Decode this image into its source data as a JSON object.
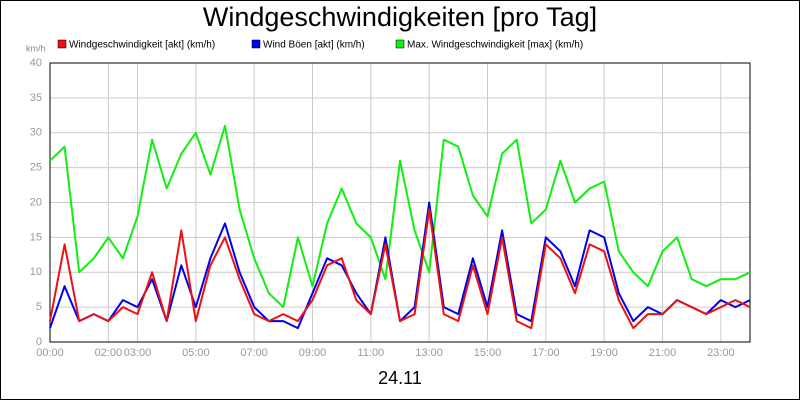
{
  "chart_data": {
    "type": "line",
    "title": "Windgeschwindigkeiten [pro Tag]",
    "y_unit": "km/h",
    "x_label": "24.11",
    "x": [
      0,
      0.5,
      1,
      1.5,
      2,
      2.5,
      3,
      3.5,
      4,
      4.5,
      5,
      5.5,
      6,
      6.5,
      7,
      7.5,
      8,
      8.5,
      9,
      9.5,
      10,
      10.5,
      11,
      11.5,
      12,
      12.5,
      13,
      13.5,
      14,
      14.5,
      15,
      15.5,
      16,
      16.5,
      17,
      17.5,
      18,
      18.5,
      19,
      19.5,
      20,
      20.5,
      21,
      21.5,
      22,
      22.5,
      23,
      23.5,
      24
    ],
    "series": [
      {
        "name": "Windgeschwindigkeit [akt] (km/h)",
        "color": "#ee1111",
        "values": [
          3,
          14,
          3,
          4,
          3,
          5,
          4,
          10,
          3,
          16,
          3,
          11,
          15,
          9,
          4,
          3,
          4,
          3,
          6,
          11,
          12,
          6,
          4,
          14,
          3,
          4,
          19,
          4,
          3,
          11,
          4,
          15,
          3,
          2,
          14,
          12,
          7,
          14,
          13,
          6,
          2,
          4,
          4,
          6,
          5,
          4,
          5,
          6,
          5
        ]
      },
      {
        "name": "Wind Böen [akt] (km/h)",
        "color": "#0000ee",
        "values": [
          2,
          8,
          3,
          4,
          3,
          6,
          5,
          9,
          3,
          11,
          5,
          12,
          17,
          10,
          5,
          3,
          3,
          2,
          7,
          12,
          11,
          7,
          4,
          15,
          3,
          5,
          20,
          5,
          4,
          12,
          5,
          16,
          4,
          3,
          15,
          13,
          8,
          16,
          15,
          7,
          3,
          5,
          4,
          6,
          5,
          4,
          6,
          5,
          6
        ]
      },
      {
        "name": "Max. Windgeschwindigkeit [max] (km/h)",
        "color": "#11ee11",
        "values": [
          26,
          28,
          10,
          12,
          15,
          12,
          18,
          29,
          22,
          27,
          30,
          24,
          31,
          19,
          12,
          7,
          5,
          15,
          8,
          17,
          22,
          17,
          15,
          9,
          26,
          16,
          10,
          29,
          28,
          21,
          18,
          27,
          29,
          17,
          19,
          26,
          20,
          22,
          23,
          13,
          10,
          8,
          13,
          15,
          9,
          8,
          9,
          9,
          10
        ]
      }
    ],
    "xlim": [
      0,
      24
    ],
    "xticks": [
      {
        "value": 0,
        "label": "00:00"
      },
      {
        "value": 2,
        "label": "02:00"
      },
      {
        "value": 3,
        "label": "03:00"
      },
      {
        "value": 5,
        "label": "05:00"
      },
      {
        "value": 7,
        "label": "07:00"
      },
      {
        "value": 9,
        "label": "09:00"
      },
      {
        "value": 11,
        "label": "11:00"
      },
      {
        "value": 13,
        "label": "13:00"
      },
      {
        "value": 15,
        "label": "15:00"
      },
      {
        "value": 17,
        "label": "17:00"
      },
      {
        "value": 19,
        "label": "19:00"
      },
      {
        "value": 21,
        "label": "21:00"
      },
      {
        "value": 23,
        "label": "23:00"
      }
    ],
    "ylim": [
      0,
      40
    ],
    "yticks": [
      0,
      5,
      10,
      15,
      20,
      25,
      30,
      35,
      40
    ],
    "grid": true
  }
}
